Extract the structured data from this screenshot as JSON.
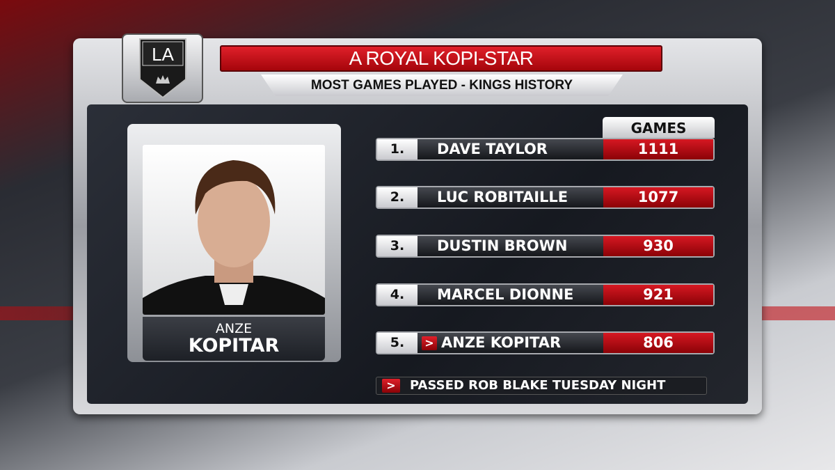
{
  "header": {
    "title": "A ROYAL KOPI-STAR",
    "subtitle": "MOST GAMES PLAYED - KINGS HISTORY",
    "logo_text": "LA"
  },
  "player": {
    "first_name": "ANZE",
    "last_name": "KOPITAR"
  },
  "table": {
    "column_header": "GAMES",
    "rows": [
      {
        "rank": "1.",
        "name": "DAVE TAYLOR",
        "games": "1111",
        "highlight": false
      },
      {
        "rank": "2.",
        "name": "LUC ROBITAILLE",
        "games": "1077",
        "highlight": false
      },
      {
        "rank": "3.",
        "name": "DUSTIN BROWN",
        "games": "930",
        "highlight": false
      },
      {
        "rank": "4.",
        "name": "MARCEL DIONNE",
        "games": "921",
        "highlight": false
      },
      {
        "rank": "5.",
        "name": "ANZE KOPITAR",
        "games": "806",
        "highlight": true
      }
    ]
  },
  "note": "PASSED ROB BLAKE TUESDAY NIGHT",
  "colors": {
    "accent_red": "#c8101a",
    "panel_dark": "#1b1d22"
  }
}
